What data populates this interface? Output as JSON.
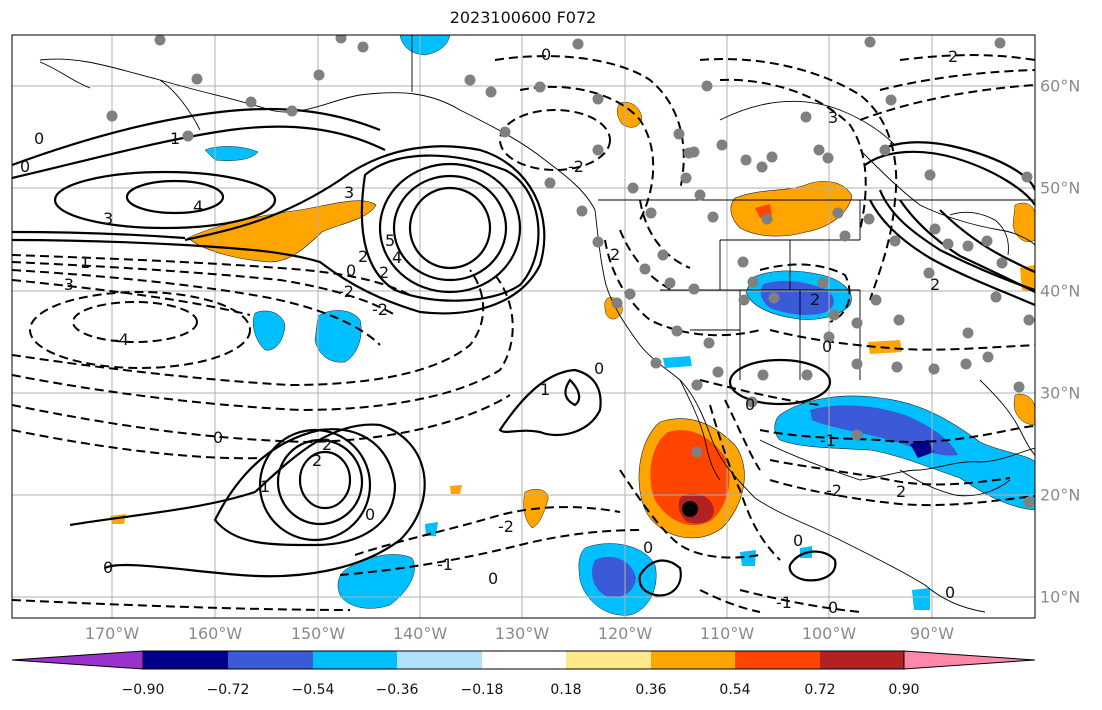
{
  "title": "2023100600 F072",
  "lon_labels": [
    "170°W",
    "160°W",
    "150°W",
    "140°W",
    "130°W",
    "120°W",
    "110°W",
    "100°W",
    "90°W"
  ],
  "lat_labels": [
    "60°N",
    "50°N",
    "40°N",
    "30°N",
    "20°N",
    "10°N"
  ],
  "contour_labels": {
    "c0": "0",
    "c1": "1",
    "c2": "2",
    "c3": "3",
    "c4": "4",
    "c5": "5",
    "n1": "-1",
    "n2": "-2",
    "n3": "-3",
    "n4": "-4"
  },
  "colorbar": {
    "tick_labels": [
      "−0.90",
      "−0.72",
      "−0.54",
      "−0.36",
      "−0.18",
      "0.18",
      "0.36",
      "0.54",
      "0.72",
      "0.90"
    ],
    "colors": [
      "#9932cc",
      "#00008b",
      "#3a5ad8",
      "#00bfff",
      "#b0e0fa",
      "#ffffff",
      "#fbe98a",
      "#ffa500",
      "#ff4500",
      "#b22222",
      "#ff88aa"
    ]
  },
  "chart_data": {
    "type": "heatmap",
    "title": "2023100600 F072",
    "x_range": [
      "180°W",
      "80°W"
    ],
    "y_range": [
      "8°N",
      "65°N"
    ],
    "x_ticks": [
      "170°W",
      "160°W",
      "150°W",
      "140°W",
      "130°W",
      "120°W",
      "110°W",
      "100°W",
      "90°W"
    ],
    "y_ticks": [
      "60°N",
      "50°N",
      "40°N",
      "30°N",
      "20°N",
      "10°N"
    ],
    "colorbar_bounds": [
      -0.9,
      -0.72,
      -0.54,
      -0.36,
      -0.18,
      0.18,
      0.36,
      0.54,
      0.72,
      0.9
    ],
    "contour_levels": [
      -4,
      -3,
      -2,
      -1,
      0,
      1,
      2,
      3,
      4,
      5
    ],
    "grid": true
  }
}
